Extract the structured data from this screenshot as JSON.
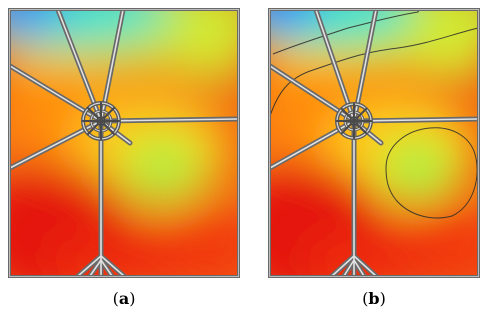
{
  "panels": [
    {
      "id": "a",
      "label_open": "(",
      "label_letter": "a",
      "label_close": ")",
      "has_contours": false
    },
    {
      "id": "b",
      "label_open": "(",
      "label_letter": "b",
      "label_close": ")",
      "has_contours": true
    }
  ],
  "colors": {
    "cold": "#1e90ff",
    "cyan": "#27e0e0",
    "green": "#9eea3e",
    "yellow": "#f6e61a",
    "orange": "#ff9a10",
    "hot": "#ee1a10",
    "frame": "#7a7a7a",
    "contour": "#2a2a2a"
  }
}
